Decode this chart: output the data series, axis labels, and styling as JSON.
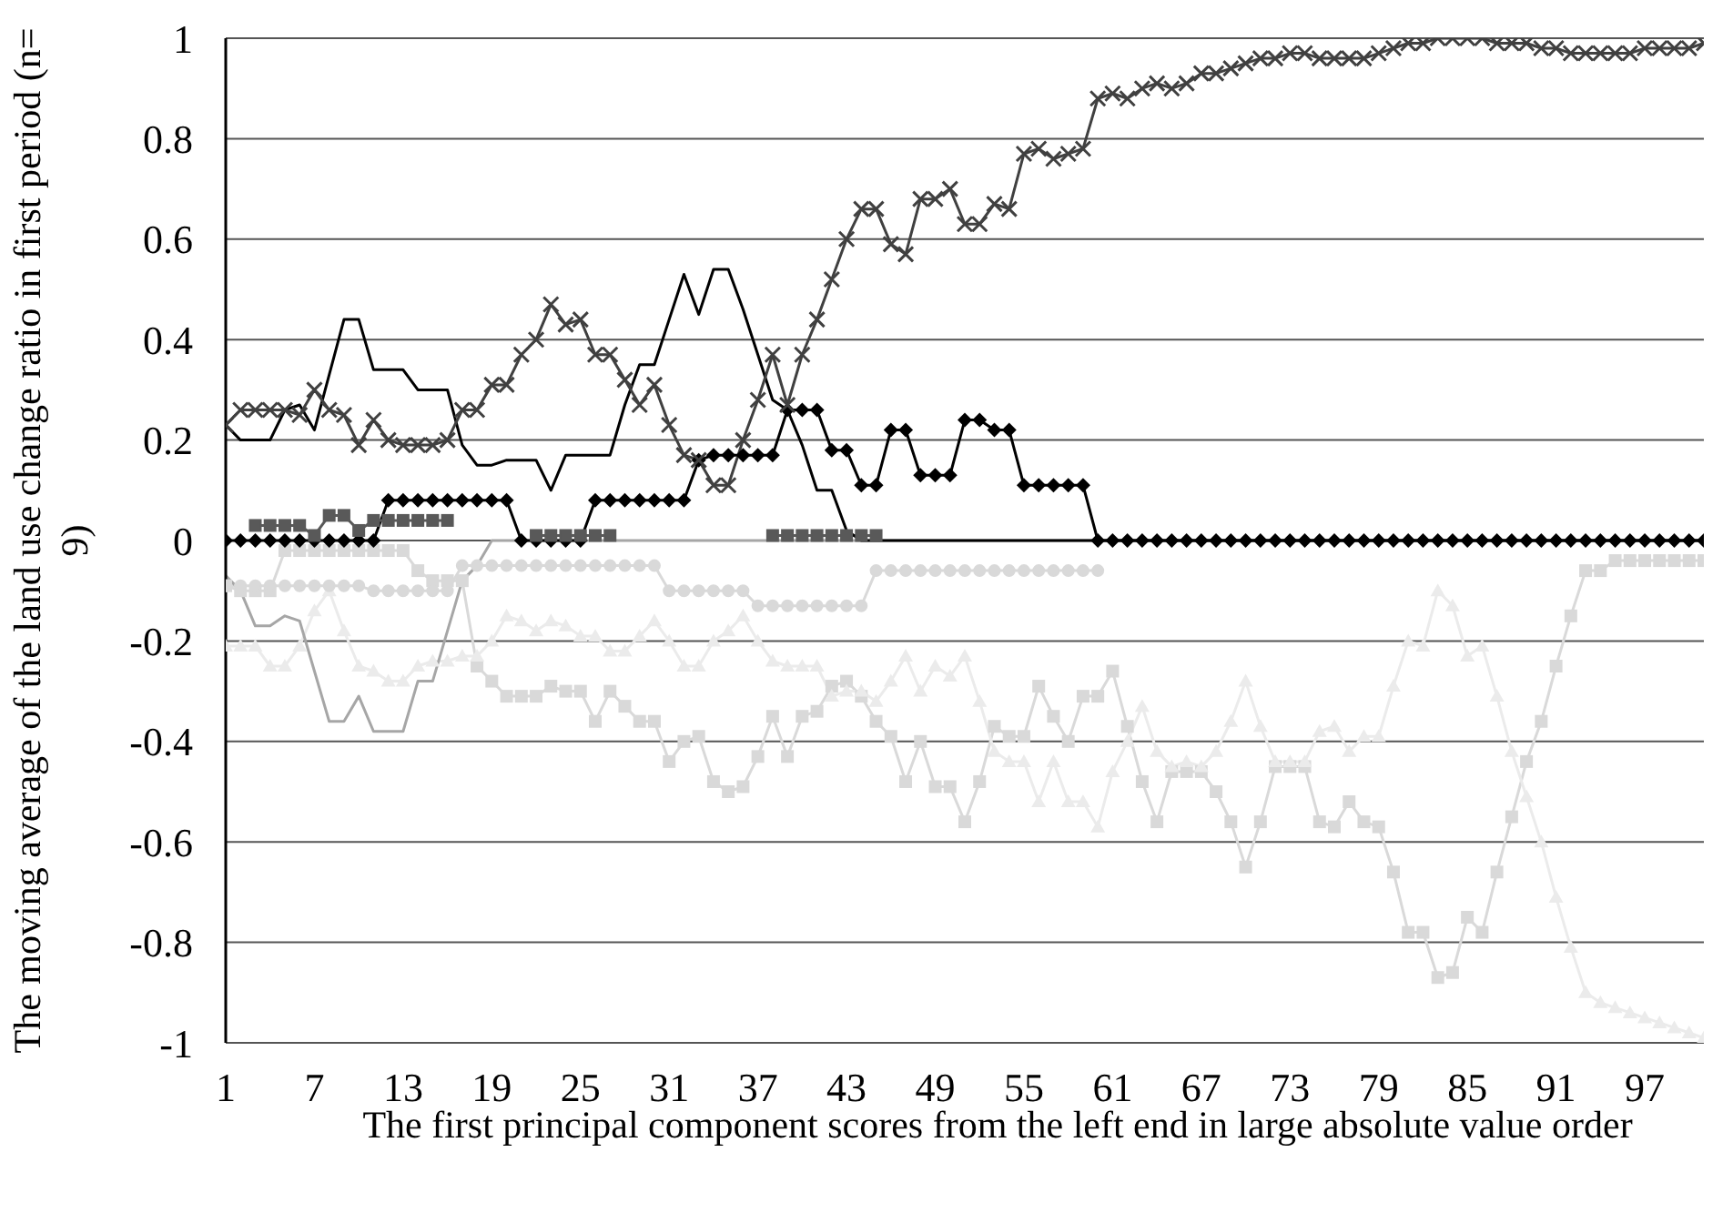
{
  "chart_data": {
    "type": "line",
    "xlabel": "The first principal component scores from the left end in large absolute value order",
    "ylabel": "The moving average of the land use change ratio in first period (n= 9)",
    "x": [
      1,
      2,
      3,
      4,
      5,
      6,
      7,
      8,
      9,
      10,
      11,
      12,
      13,
      14,
      15,
      16,
      17,
      18,
      19,
      20,
      21,
      22,
      23,
      24,
      25,
      26,
      27,
      28,
      29,
      30,
      31,
      32,
      33,
      34,
      35,
      36,
      37,
      38,
      39,
      40,
      41,
      42,
      43,
      44,
      45,
      46,
      47,
      48,
      49,
      50,
      51,
      52,
      53,
      54,
      55,
      56,
      57,
      58,
      59,
      60,
      61,
      62,
      63,
      64,
      65,
      66,
      67,
      68,
      69,
      70,
      71,
      72,
      73,
      74,
      75,
      76,
      77,
      78,
      79,
      80,
      81,
      82,
      83,
      84,
      85,
      86,
      87,
      88,
      89,
      90,
      91,
      92,
      93,
      94,
      95,
      96,
      97,
      98,
      99,
      100,
      101
    ],
    "xlim": [
      1,
      101
    ],
    "xticks": [
      1,
      7,
      13,
      19,
      25,
      31,
      37,
      43,
      49,
      55,
      61,
      67,
      73,
      79,
      85,
      91,
      97
    ],
    "ylim": [
      -1,
      1
    ],
    "yticks": [
      -1,
      -0.8,
      -0.6,
      -0.4,
      -0.2,
      0,
      0.2,
      0.4,
      0.6,
      0.8,
      1
    ],
    "grid": "y",
    "series": [
      {
        "color": "#d9d9d9",
        "marker": "square",
        "values": [
          -0.09,
          -0.1,
          -0.1,
          -0.1,
          -0.02,
          -0.02,
          -0.02,
          -0.02,
          -0.02,
          -0.02,
          -0.02,
          -0.02,
          -0.02,
          -0.06,
          -0.08,
          -0.08,
          -0.08,
          -0.25,
          -0.28,
          -0.31,
          -0.31,
          -0.31,
          -0.29,
          -0.3,
          -0.3,
          -0.36,
          -0.3,
          -0.33,
          -0.36,
          -0.36,
          -0.44,
          -0.4,
          -0.39,
          -0.48,
          -0.5,
          -0.49,
          -0.43,
          -0.35,
          -0.43,
          -0.35,
          -0.34,
          -0.29,
          -0.28,
          -0.31,
          -0.36,
          -0.39,
          -0.48,
          -0.4,
          -0.49,
          -0.49,
          -0.56,
          -0.48,
          -0.37,
          -0.39,
          -0.39,
          -0.29,
          -0.35,
          -0.4,
          -0.31,
          -0.31,
          -0.26,
          -0.37,
          -0.48,
          -0.56,
          -0.46,
          -0.46,
          -0.46,
          -0.5,
          -0.56,
          -0.65,
          -0.56,
          -0.45,
          -0.45,
          -0.45,
          -0.56,
          -0.57,
          -0.52,
          -0.56,
          -0.57,
          -0.66,
          -0.78,
          -0.78,
          -0.87,
          -0.86,
          -0.75,
          -0.78,
          -0.66,
          -0.55,
          -0.44,
          -0.36,
          -0.25,
          -0.15,
          -0.06,
          -0.06,
          -0.04,
          -0.04,
          -0.04,
          -0.04,
          -0.04,
          -0.04,
          -0.04
        ]
      },
      {
        "color": "#ebebeb",
        "marker": "triangle",
        "values": [
          -0.21,
          -0.21,
          -0.21,
          -0.25,
          -0.25,
          -0.21,
          -0.14,
          -0.1,
          -0.18,
          -0.25,
          -0.26,
          -0.28,
          -0.28,
          -0.25,
          -0.24,
          -0.24,
          -0.23,
          -0.23,
          -0.2,
          -0.15,
          -0.16,
          -0.18,
          -0.16,
          -0.17,
          -0.19,
          -0.19,
          -0.22,
          -0.22,
          -0.19,
          -0.16,
          -0.2,
          -0.25,
          -0.25,
          -0.2,
          -0.18,
          -0.15,
          -0.2,
          -0.24,
          -0.25,
          -0.25,
          -0.25,
          -0.31,
          -0.3,
          -0.3,
          -0.32,
          -0.28,
          -0.23,
          -0.3,
          -0.25,
          -0.27,
          -0.23,
          -0.32,
          -0.42,
          -0.44,
          -0.44,
          -0.52,
          -0.44,
          -0.52,
          -0.52,
          -0.57,
          -0.46,
          -0.4,
          -0.33,
          -0.42,
          -0.45,
          -0.44,
          -0.45,
          -0.42,
          -0.36,
          -0.28,
          -0.37,
          -0.44,
          -0.44,
          -0.44,
          -0.38,
          -0.37,
          -0.42,
          -0.39,
          -0.39,
          -0.29,
          -0.2,
          -0.21,
          -0.1,
          -0.13,
          -0.23,
          -0.21,
          -0.31,
          -0.42,
          -0.51,
          -0.6,
          -0.71,
          -0.81,
          -0.9,
          -0.92,
          -0.93,
          -0.94,
          -0.95,
          -0.96,
          -0.97,
          -0.98,
          -0.99
        ]
      },
      {
        "color": "#d9d9d9",
        "marker": "circle",
        "values": [
          -0.09,
          -0.09,
          -0.09,
          -0.09,
          -0.09,
          -0.09,
          -0.09,
          -0.09,
          -0.09,
          -0.09,
          -0.1,
          -0.1,
          -0.1,
          -0.1,
          -0.1,
          -0.1,
          -0.05,
          -0.05,
          -0.05,
          -0.05,
          -0.05,
          -0.05,
          -0.05,
          -0.05,
          -0.05,
          -0.05,
          -0.05,
          -0.05,
          -0.05,
          -0.05,
          -0.1,
          -0.1,
          -0.1,
          -0.1,
          -0.1,
          -0.1,
          -0.13,
          -0.13,
          -0.13,
          -0.13,
          -0.13,
          -0.13,
          -0.13,
          -0.13,
          -0.06,
          -0.06,
          -0.06,
          -0.06,
          -0.06,
          -0.06,
          -0.06,
          -0.06,
          -0.06,
          -0.06,
          -0.06,
          -0.06,
          -0.06,
          -0.06,
          -0.06,
          -0.06,
          null,
          null,
          null,
          null,
          null,
          null,
          null,
          null,
          null,
          null,
          null,
          null,
          null,
          null,
          null,
          null,
          null,
          null,
          null,
          null,
          null,
          null,
          null,
          null,
          null,
          null,
          null,
          null,
          null,
          null,
          null,
          null,
          null,
          null,
          null,
          null,
          null,
          null,
          null,
          null,
          null
        ]
      },
      {
        "color": "#a6a6a6",
        "marker": "none",
        "values": [
          -0.07,
          -0.1,
          -0.17,
          -0.17,
          -0.15,
          -0.16,
          -0.26,
          -0.36,
          -0.36,
          -0.31,
          -0.38,
          -0.38,
          -0.38,
          -0.28,
          -0.28,
          -0.18,
          -0.08,
          -0.05,
          0,
          0,
          0,
          0,
          0,
          0,
          0,
          0,
          0,
          0,
          0,
          0,
          0,
          0,
          0,
          0,
          0,
          0,
          0,
          0,
          0,
          0,
          0,
          0,
          0,
          0,
          0,
          0,
          0,
          0,
          0,
          0,
          0,
          0,
          0,
          0,
          0,
          0,
          0,
          0,
          0,
          0,
          0,
          0,
          0,
          0,
          0,
          0,
          0,
          0,
          0,
          0,
          0,
          0,
          0,
          0,
          0,
          0,
          0,
          0,
          0,
          0,
          0,
          0,
          0,
          0,
          0,
          0,
          0,
          0,
          0,
          0,
          0,
          0,
          0,
          0,
          0,
          0,
          0,
          0,
          0,
          0,
          0
        ]
      },
      {
        "color": "#000000",
        "marker": "diamond",
        "values": [
          0,
          0,
          0,
          0,
          0,
          0,
          0,
          0,
          0,
          0,
          0,
          0.08,
          0.08,
          0.08,
          0.08,
          0.08,
          0.08,
          0.08,
          0.08,
          0.08,
          0,
          0,
          0,
          0,
          0,
          0.08,
          0.08,
          0.08,
          0.08,
          0.08,
          0.08,
          0.08,
          0.16,
          0.17,
          0.17,
          0.17,
          0.17,
          0.17,
          0.26,
          0.26,
          0.26,
          0.18,
          0.18,
          0.11,
          0.11,
          0.22,
          0.22,
          0.13,
          0.13,
          0.13,
          0.24,
          0.24,
          0.22,
          0.22,
          0.11,
          0.11,
          0.11,
          0.11,
          0.11,
          0,
          0,
          0,
          0,
          0,
          0,
          0,
          0,
          0,
          0,
          0,
          0,
          0,
          0,
          0,
          0,
          0,
          0,
          0,
          0,
          0,
          0,
          0,
          0,
          0,
          0,
          0,
          0,
          0,
          0,
          0,
          0,
          0,
          0,
          0,
          0,
          0,
          0,
          0,
          0,
          0,
          0
        ]
      },
      {
        "color": "#595959",
        "marker": "square",
        "values": [
          null,
          null,
          0.03,
          0.03,
          0.03,
          0.03,
          0.01,
          0.05,
          0.05,
          0.02,
          0.04,
          0.04,
          0.04,
          0.04,
          0.04,
          0.04,
          null,
          null,
          null,
          null,
          null,
          0.01,
          0.01,
          0.01,
          0.01,
          0.01,
          0.01,
          null,
          null,
          null,
          null,
          null,
          null,
          null,
          null,
          null,
          null,
          0.01,
          0.01,
          0.01,
          0.01,
          0.01,
          0.01,
          0.01,
          0.01,
          null,
          null,
          null,
          null,
          null,
          null,
          null,
          null,
          null,
          null,
          null,
          null,
          null,
          null,
          null,
          null,
          null,
          null,
          null,
          null,
          null,
          null,
          null,
          null,
          null,
          null,
          null,
          null,
          null,
          null,
          null,
          null,
          null,
          null,
          null,
          null,
          null,
          null,
          null,
          null,
          null,
          null,
          null,
          null,
          null,
          null,
          null,
          null,
          null,
          null,
          null,
          null,
          null,
          null,
          null,
          null
        ]
      },
      {
        "color": "#000000",
        "marker": "none",
        "values": [
          0.23,
          0.2,
          0.2,
          0.2,
          0.26,
          0.27,
          0.22,
          0.33,
          0.44,
          0.44,
          0.34,
          0.34,
          0.34,
          0.3,
          0.3,
          0.3,
          0.19,
          0.15,
          0.15,
          0.16,
          0.16,
          0.16,
          0.1,
          0.17,
          0.17,
          0.17,
          0.17,
          0.27,
          0.35,
          0.35,
          0.44,
          0.53,
          0.45,
          0.54,
          0.54,
          0.46,
          0.37,
          0.28,
          0.26,
          0.19,
          0.1,
          0.1,
          0.02,
          0,
          0,
          0,
          0,
          0,
          0,
          0,
          0,
          0,
          0,
          0,
          0,
          0,
          0,
          0,
          0,
          0,
          0,
          0,
          0,
          0,
          0,
          0,
          0,
          0,
          0,
          0,
          0,
          0,
          0,
          0,
          0,
          0,
          0,
          0,
          0,
          0,
          0,
          0,
          0,
          0,
          0,
          0,
          0,
          0,
          0,
          0,
          0,
          0,
          0,
          0,
          0,
          0,
          0,
          0,
          0,
          0,
          0
        ]
      },
      {
        "color": "#404040",
        "marker": "cross",
        "values": [
          0.23,
          0.26,
          0.26,
          0.26,
          0.26,
          0.25,
          0.3,
          0.26,
          0.25,
          0.19,
          0.24,
          0.2,
          0.19,
          0.19,
          0.19,
          0.2,
          0.26,
          0.26,
          0.31,
          0.31,
          0.37,
          0.4,
          0.47,
          0.43,
          0.44,
          0.37,
          0.37,
          0.32,
          0.27,
          0.31,
          0.23,
          0.17,
          0.16,
          0.11,
          0.11,
          0.2,
          0.28,
          0.37,
          0.27,
          0.37,
          0.44,
          0.52,
          0.6,
          0.66,
          0.66,
          0.59,
          0.57,
          0.68,
          0.68,
          0.7,
          0.63,
          0.63,
          0.67,
          0.66,
          0.77,
          0.78,
          0.76,
          0.77,
          0.78,
          0.88,
          0.89,
          0.88,
          0.9,
          0.91,
          0.9,
          0.91,
          0.93,
          0.93,
          0.94,
          0.95,
          0.96,
          0.96,
          0.97,
          0.97,
          0.96,
          0.96,
          0.96,
          0.96,
          0.97,
          0.98,
          0.99,
          0.99,
          1,
          1,
          1,
          1,
          0.99,
          0.99,
          0.99,
          0.98,
          0.98,
          0.97,
          0.97,
          0.97,
          0.97,
          0.97,
          0.98,
          0.98,
          0.98,
          0.98,
          0.99
        ]
      }
    ]
  }
}
